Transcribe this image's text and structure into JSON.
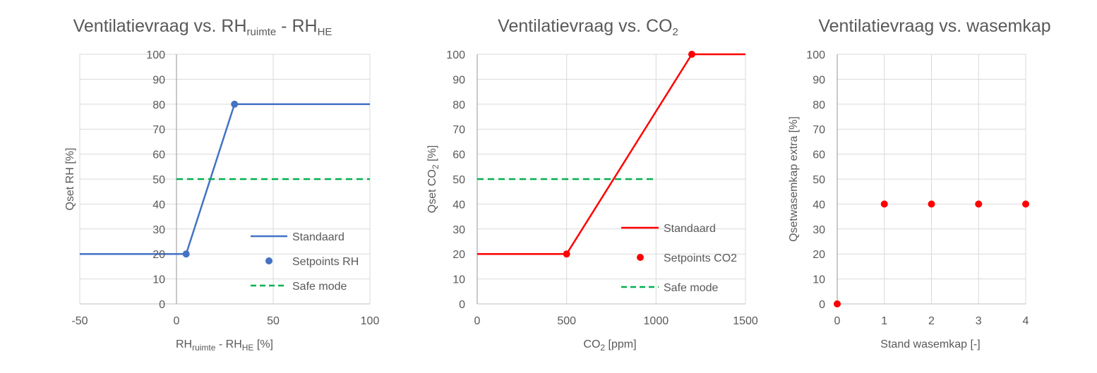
{
  "chart_data": [
    {
      "id": "rh",
      "type": "line",
      "title": {
        "main": "Ventilatievraag vs. RH",
        "sub1": "ruimte",
        "mid": " - RH",
        "sub2": "HE"
      },
      "xlabel": {
        "main": "RH",
        "sub1": "ruimte",
        "mid": " - RH",
        "sub2": "HE",
        "tail": " [%]"
      },
      "ylabel": {
        "text": "Qset RH [%]"
      },
      "xlim": [
        -50,
        100
      ],
      "ylim": [
        0,
        100
      ],
      "xticks": [
        -50,
        0,
        50,
        100
      ],
      "yticks": [
        0,
        10,
        20,
        30,
        40,
        50,
        60,
        70,
        80,
        90,
        100
      ],
      "xtick_labels": [
        "-50",
        "0",
        "50",
        "100"
      ],
      "ytick_labels": [
        "0",
        "10",
        "20",
        "30",
        "40",
        "50",
        "60",
        "70",
        "80",
        "90",
        "100"
      ],
      "zero_axis_x": 0,
      "grid": true,
      "legend_position": "bottom-right",
      "series": [
        {
          "name": "Standaard",
          "kind": "line",
          "color": "#4472C4",
          "dash": false,
          "x": [
            -50,
            5,
            30,
            100
          ],
          "y": [
            20,
            20,
            80,
            80
          ]
        },
        {
          "name": "Setpoints RH",
          "kind": "marker",
          "color": "#4472C4",
          "x": [
            5,
            30
          ],
          "y": [
            20,
            80
          ]
        },
        {
          "name": "Safe mode",
          "kind": "line",
          "color": "#00B050",
          "dash": true,
          "x": [
            0,
            100
          ],
          "y": [
            50,
            50
          ]
        }
      ]
    },
    {
      "id": "co2",
      "type": "line",
      "title": {
        "main": "Ventilatievraag vs. CO",
        "sub1": "2"
      },
      "xlabel": {
        "main": "CO",
        "sub1": "2",
        "tail": " [ppm]"
      },
      "ylabel": {
        "text": "Qset CO",
        "sub": "2",
        "tail": " [%]"
      },
      "xlim": [
        0,
        1500
      ],
      "ylim": [
        0,
        100
      ],
      "xticks": [
        0,
        500,
        1000,
        1500
      ],
      "yticks": [
        0,
        10,
        20,
        30,
        40,
        50,
        60,
        70,
        80,
        90,
        100
      ],
      "xtick_labels": [
        "0",
        "500",
        "1000",
        "1500"
      ],
      "ytick_labels": [
        "0",
        "10",
        "20",
        "30",
        "40",
        "50",
        "60",
        "70",
        "80",
        "90",
        "100"
      ],
      "grid": true,
      "legend_position": "bottom-right",
      "series": [
        {
          "name": "Standaard",
          "kind": "line",
          "color": "#FF0000",
          "dash": false,
          "x": [
            0,
            500,
            1200,
            1500
          ],
          "y": [
            20,
            20,
            100,
            100
          ]
        },
        {
          "name": "Setpoints CO2",
          "kind": "marker",
          "color": "#FF0000",
          "x": [
            500,
            1200
          ],
          "y": [
            20,
            100
          ]
        },
        {
          "name": "Safe mode",
          "kind": "line",
          "color": "#00B050",
          "dash": true,
          "x": [
            0,
            1000
          ],
          "y": [
            50,
            50
          ]
        }
      ]
    },
    {
      "id": "hood",
      "type": "scatter",
      "title": {
        "main": "Ventilatievraag vs. wasemkap"
      },
      "xlabel": {
        "main": "Stand wasemkap [-]"
      },
      "ylabel": {
        "text": "Qsetwasemkap extra [%]"
      },
      "xlim": [
        0,
        4
      ],
      "ylim": [
        0,
        100
      ],
      "xticks": [
        0,
        1,
        2,
        3,
        4
      ],
      "yticks": [
        0,
        10,
        20,
        30,
        40,
        50,
        60,
        70,
        80,
        90,
        100
      ],
      "xtick_labels": [
        "0",
        "1",
        "2",
        "3",
        "4"
      ],
      "ytick_labels": [
        "0",
        "10",
        "20",
        "30",
        "40",
        "50",
        "60",
        "70",
        "80",
        "90",
        "100"
      ],
      "grid": true,
      "series": [
        {
          "kind": "marker",
          "color": "#FF0000",
          "x": [
            0,
            1,
            2,
            3,
            4
          ],
          "y": [
            0,
            40,
            40,
            40,
            40
          ]
        }
      ]
    }
  ]
}
